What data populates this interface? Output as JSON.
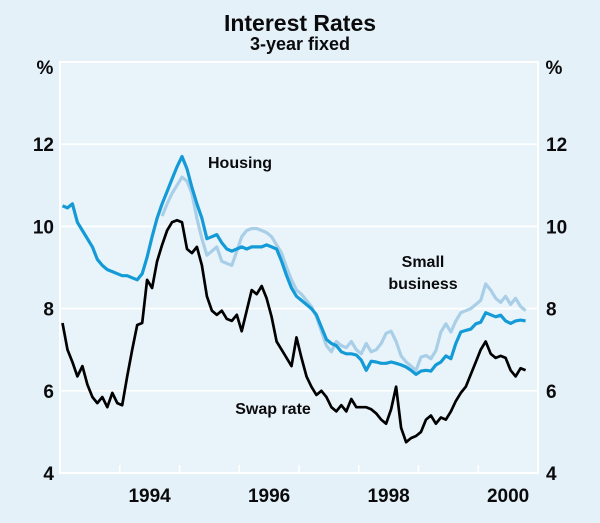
{
  "title": "Interest Rates",
  "subtitle": "3-year fixed",
  "axis": {
    "unit_left": "%",
    "unit_right": "%",
    "y_ticks": [
      12,
      10,
      8,
      6,
      4
    ],
    "x_tick_years": [
      1994,
      1995,
      1996,
      1997,
      1998,
      1999,
      2000
    ],
    "x_labels": [
      "1994",
      "1996",
      "1998",
      "2000"
    ],
    "ylim": [
      4,
      14
    ],
    "x_range_years": [
      1993,
      2001
    ]
  },
  "labels": {
    "housing": "Housing",
    "small_business_line1": "Small",
    "small_business_line2": "business",
    "swap": "Swap rate"
  },
  "colors": {
    "background": "#E4F1F8",
    "frame_and_grid": "#FFFFFF",
    "housing_line": "#149BD7",
    "small_business_line": "#A9CEE8",
    "swap_line": "#000000"
  },
  "chart_data": {
    "type": "line",
    "title": "Interest Rates",
    "subtitle": "3-year fixed",
    "ylabel": "%",
    "ylim": [
      4,
      14
    ],
    "grid_values": [
      6,
      8,
      10,
      12
    ],
    "frequency": "monthly",
    "legend_position": "inline-annotations",
    "series": [
      {
        "name": "Small business",
        "color": "#A9CEE8",
        "start_year": 1994,
        "start_month": 9,
        "values": [
          10.25,
          10.55,
          10.8,
          11.0,
          11.2,
          11.1,
          10.8,
          10.2,
          9.7,
          9.3,
          9.4,
          9.5,
          9.15,
          9.1,
          9.05,
          9.4,
          9.75,
          9.9,
          9.95,
          9.95,
          9.9,
          9.85,
          9.75,
          9.55,
          9.35,
          9.0,
          8.7,
          8.45,
          8.35,
          8.2,
          8.05,
          7.8,
          7.45,
          7.1,
          6.95,
          7.2,
          7.1,
          7.05,
          7.2,
          7.0,
          6.9,
          7.15,
          6.95,
          7.0,
          7.15,
          7.4,
          7.45,
          7.2,
          6.85,
          6.7,
          6.6,
          6.5,
          6.82,
          6.86,
          6.78,
          6.98,
          7.43,
          7.63,
          7.43,
          7.7,
          7.9,
          7.95,
          8.0,
          8.1,
          8.2,
          8.6,
          8.45,
          8.25,
          8.15,
          8.3,
          8.1,
          8.25,
          8.05,
          7.95
        ]
      },
      {
        "name": "Housing",
        "color": "#149BD7",
        "start_year": 1993,
        "start_month": 1,
        "values": [
          10.5,
          10.45,
          10.55,
          10.1,
          9.9,
          9.7,
          9.5,
          9.2,
          9.05,
          8.95,
          8.9,
          8.85,
          8.8,
          8.8,
          8.75,
          8.7,
          8.85,
          9.25,
          9.75,
          10.2,
          10.55,
          10.85,
          11.15,
          11.45,
          11.7,
          11.4,
          10.95,
          10.55,
          10.2,
          9.7,
          9.75,
          9.8,
          9.6,
          9.45,
          9.4,
          9.45,
          9.5,
          9.45,
          9.5,
          9.5,
          9.5,
          9.55,
          9.5,
          9.45,
          9.15,
          8.8,
          8.5,
          8.3,
          8.2,
          8.1,
          8.0,
          7.85,
          7.55,
          7.25,
          7.15,
          7.1,
          6.95,
          6.9,
          6.9,
          6.87,
          6.75,
          6.5,
          6.72,
          6.7,
          6.67,
          6.67,
          6.7,
          6.67,
          6.63,
          6.58,
          6.5,
          6.4,
          6.48,
          6.5,
          6.48,
          6.63,
          6.7,
          6.85,
          6.78,
          7.15,
          7.43,
          7.47,
          7.5,
          7.63,
          7.67,
          7.9,
          7.85,
          7.8,
          7.84,
          7.7,
          7.64,
          7.7,
          7.72,
          7.7
        ]
      },
      {
        "name": "Swap rate",
        "color": "#000000",
        "start_year": 1993,
        "start_month": 1,
        "values": [
          7.65,
          7.0,
          6.7,
          6.35,
          6.6,
          6.15,
          5.85,
          5.7,
          5.85,
          5.6,
          5.95,
          5.7,
          5.65,
          6.35,
          7.0,
          7.6,
          7.65,
          8.7,
          8.5,
          9.15,
          9.55,
          9.9,
          10.1,
          10.15,
          10.1,
          9.45,
          9.35,
          9.5,
          9.05,
          8.3,
          7.95,
          7.85,
          7.95,
          7.75,
          7.7,
          7.85,
          7.45,
          7.95,
          8.45,
          8.35,
          8.55,
          8.25,
          7.8,
          7.2,
          7.0,
          6.8,
          6.6,
          7.3,
          6.8,
          6.35,
          6.1,
          5.9,
          6.0,
          5.85,
          5.6,
          5.5,
          5.65,
          5.5,
          5.8,
          5.6,
          5.6,
          5.6,
          5.55,
          5.45,
          5.3,
          5.2,
          5.55,
          6.1,
          5.1,
          4.75,
          4.85,
          4.9,
          5.0,
          5.3,
          5.4,
          5.2,
          5.35,
          5.3,
          5.5,
          5.75,
          5.95,
          6.1,
          6.4,
          6.7,
          7.0,
          7.2,
          6.9,
          6.8,
          6.85,
          6.8,
          6.5,
          6.35,
          6.55,
          6.5
        ]
      }
    ]
  }
}
